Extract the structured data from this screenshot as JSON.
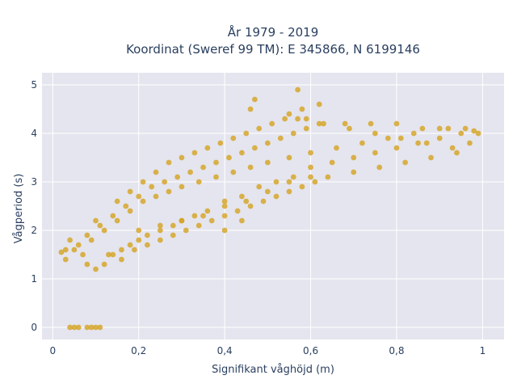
{
  "chart_data": {
    "type": "scatter",
    "title_line1": "År 1979 - 2019",
    "title_line2": "Koordinat (Sweref 99 TM): E 345866, N 6199146",
    "xlabel": "Signifikant våghöjd (m)",
    "ylabel": "Vågperiod (s)",
    "xlim": [
      -0.025,
      1.05
    ],
    "ylim": [
      -0.25,
      5.25
    ],
    "x_ticks": [
      0,
      0.2,
      0.4,
      0.6,
      0.8,
      1.0
    ],
    "x_tick_labels": [
      "0",
      "0,2",
      "0,4",
      "0,6",
      "0,8",
      "1"
    ],
    "y_ticks": [
      0,
      1,
      2,
      3,
      4,
      5
    ],
    "y_tick_labels": [
      "0",
      "1",
      "2",
      "3",
      "4",
      "5"
    ],
    "grid": true,
    "marker_color": "#d4a21f",
    "plot_background": "#e5e5ef",
    "series": [
      {
        "x": [
          0.04,
          0.05,
          0.06,
          0.08,
          0.09,
          0.1,
          0.11,
          0.02,
          0.03,
          0.05,
          0.07,
          0.08,
          0.1,
          0.12,
          0.14,
          0.16,
          0.18,
          0.2,
          0.22,
          0.25,
          0.28,
          0.3,
          0.33,
          0.36,
          0.4,
          0.44,
          0.48,
          0.52,
          0.56,
          0.6,
          0.65,
          0.7,
          0.75,
          0.8,
          0.85,
          0.9,
          0.95,
          0.98,
          0.03,
          0.06,
          0.09,
          0.12,
          0.15,
          0.18,
          0.21,
          0.24,
          0.27,
          0.3,
          0.34,
          0.38,
          0.42,
          0.46,
          0.5,
          0.55,
          0.6,
          0.66,
          0.72,
          0.78,
          0.84,
          0.9,
          0.96,
          0.99,
          0.04,
          0.08,
          0.11,
          0.14,
          0.17,
          0.2,
          0.23,
          0.26,
          0.29,
          0.32,
          0.35,
          0.38,
          0.41,
          0.44,
          0.47,
          0.5,
          0.53,
          0.56,
          0.59,
          0.62,
          0.68,
          0.74,
          0.8,
          0.86,
          0.92,
          0.1,
          0.13,
          0.16,
          0.19,
          0.22,
          0.25,
          0.28,
          0.31,
          0.34,
          0.37,
          0.4,
          0.43,
          0.46,
          0.49,
          0.52,
          0.55,
          0.58,
          0.61,
          0.64,
          0.7,
          0.76,
          0.82,
          0.88,
          0.94,
          0.15,
          0.18,
          0.21,
          0.24,
          0.27,
          0.3,
          0.33,
          0.36,
          0.39,
          0.42,
          0.45,
          0.48,
          0.51,
          0.54,
          0.57,
          0.63,
          0.69,
          0.75,
          0.81,
          0.87,
          0.93,
          0.97,
          0.2,
          0.25,
          0.3,
          0.35,
          0.4,
          0.45,
          0.5,
          0.55,
          0.6,
          0.55,
          0.58,
          0.62,
          0.57,
          0.59,
          0.47,
          0.46,
          0.44,
          0.4
        ],
        "y": [
          0,
          0,
          0,
          0,
          0,
          0,
          0,
          1.55,
          1.4,
          1.6,
          1.5,
          1.3,
          1.2,
          1.3,
          1.5,
          1.6,
          1.7,
          1.8,
          1.9,
          2.0,
          2.1,
          2.2,
          2.3,
          2.4,
          2.6,
          2.7,
          2.9,
          3.0,
          3.1,
          3.3,
          3.4,
          3.5,
          3.6,
          3.7,
          3.8,
          3.9,
          4.0,
          4.05,
          1.6,
          1.7,
          1.8,
          2.0,
          2.2,
          2.4,
          2.6,
          2.7,
          2.8,
          2.9,
          3.0,
          3.1,
          3.2,
          3.3,
          3.4,
          3.5,
          3.6,
          3.7,
          3.8,
          3.9,
          4.0,
          4.1,
          4.1,
          4.0,
          1.8,
          1.9,
          2.1,
          2.3,
          2.5,
          2.7,
          2.9,
          3.0,
          3.1,
          3.2,
          3.3,
          3.4,
          3.5,
          3.6,
          3.7,
          3.8,
          3.9,
          4.0,
          4.1,
          4.2,
          4.2,
          4.2,
          4.2,
          4.1,
          4.1,
          2.2,
          1.5,
          1.4,
          1.6,
          1.7,
          1.8,
          1.9,
          2.0,
          2.1,
          2.2,
          2.3,
          2.4,
          2.5,
          2.6,
          2.7,
          2.8,
          2.9,
          3.0,
          3.1,
          3.2,
          3.3,
          3.4,
          3.5,
          3.6,
          2.6,
          2.8,
          3.0,
          3.2,
          3.4,
          3.5,
          3.6,
          3.7,
          3.8,
          3.9,
          4.0,
          4.1,
          4.2,
          4.3,
          4.3,
          4.2,
          4.1,
          4.0,
          3.9,
          3.8,
          3.7,
          3.8,
          2.0,
          2.1,
          2.2,
          2.3,
          2.5,
          2.6,
          2.8,
          3.0,
          3.1,
          4.4,
          4.5,
          4.6,
          4.9,
          4.3,
          4.7,
          4.5,
          2.2,
          2.0
        ]
      }
    ]
  }
}
